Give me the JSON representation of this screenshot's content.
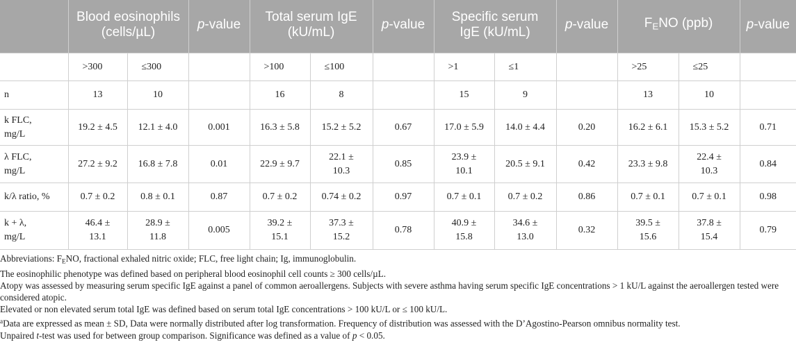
{
  "table": {
    "headers": {
      "blank": "",
      "blood_eos": [
        "Blood eosinophils",
        "(cells/µL)"
      ],
      "pvalue": "p",
      "pvalue_rest": "-value",
      "total_ige": [
        "Total serum IgE",
        "(kU/mL)"
      ],
      "specific_ige": [
        "Specific serum",
        "IgE (kU/mL)"
      ],
      "feno_f": "F",
      "feno_e": "E",
      "feno_rest": "NO (ppb)"
    },
    "cutoffs": [
      ">300",
      "≤300",
      "",
      ">100",
      "≤100",
      "",
      ">1",
      "≤1",
      "",
      ">25",
      "≤25",
      ""
    ],
    "rows": {
      "n": {
        "label": "n",
        "cells": [
          "13",
          "10",
          "",
          "16",
          "8",
          "",
          "15",
          "9",
          "",
          "13",
          "10",
          ""
        ]
      },
      "kflc": {
        "label": [
          "k FLC,",
          "mg/L"
        ],
        "cells": [
          [
            "19.2 ± 4.5"
          ],
          [
            "12.1 ± 4.0"
          ],
          [
            "0.001"
          ],
          [
            "16.3 ± 5.8"
          ],
          [
            "15.2 ± 5.2"
          ],
          [
            "0.67"
          ],
          [
            "17.0 ± 5.9"
          ],
          [
            "14.0 ± 4.4"
          ],
          [
            "0.20"
          ],
          [
            "16.2 ± 6.1"
          ],
          [
            "15.3 ± 5.2"
          ],
          [
            "0.71"
          ]
        ]
      },
      "lflc": {
        "label": [
          "λ FLC,",
          "mg/L"
        ],
        "cells": [
          [
            "27.2 ± 9.2"
          ],
          [
            "16.8 ± 7.8"
          ],
          [
            "0.01"
          ],
          [
            "22.9 ± 9.7"
          ],
          [
            "22.1 ±",
            "10.3"
          ],
          [
            "0.85"
          ],
          [
            "23.9 ±",
            "10.1"
          ],
          [
            "20.5 ± 9.1"
          ],
          [
            "0.42"
          ],
          [
            "23.3 ± 9.8"
          ],
          [
            "22.4 ±",
            "10.3"
          ],
          [
            "0.84"
          ]
        ]
      },
      "ratio": {
        "label": [
          "k/λ ratio, %"
        ],
        "cells": [
          [
            "0.7 ± 0.2"
          ],
          [
            "0.8 ± 0.1"
          ],
          [
            "0.87"
          ],
          [
            "0.7 ± 0.2"
          ],
          [
            "0.74 ± 0.2"
          ],
          [
            "0.97"
          ],
          [
            "0.7 ± 0.1"
          ],
          [
            "0.7 ± 0.2"
          ],
          [
            "0.86"
          ],
          [
            "0.7 ± 0.1"
          ],
          [
            "0.7 ± 0.1"
          ],
          [
            "0.98"
          ]
        ]
      },
      "sum": {
        "label": [
          "k + λ,",
          "mg/L"
        ],
        "cells": [
          [
            "46.4 ±",
            "13.1"
          ],
          [
            "28.9 ±",
            "11.8"
          ],
          [
            "0.005"
          ],
          [
            "39.2 ±",
            "15.1"
          ],
          [
            "37.3 ±",
            "15.2"
          ],
          [
            "0.78"
          ],
          [
            "40.9 ±",
            "15.8"
          ],
          [
            "34.6 ±",
            "13.0"
          ],
          [
            "0.32"
          ],
          [
            "39.5 ±",
            "15.6"
          ],
          [
            "37.8 ±",
            "15.4"
          ],
          [
            "0.79"
          ]
        ]
      }
    }
  },
  "notes": {
    "abbrev_pre": "Abbreviations: F",
    "abbrev_sub": "E",
    "abbrev_post": "NO, fractional exhaled nitric oxide; FLC, free light chain; Ig, immunoglobulin.",
    "eos": "The eosinophilic phenotype was defined based on peripheral blood eosinophil cell counts ≥ 300 cells/µL.",
    "atopy": "Atopy was assessed by measuring serum specific IgE against a panel of common aeroallergens. Subjects with severe asthma having serum specific IgE concentrations > 1 kU/L against the aeroallergen tested were considered atopic.",
    "elevated": "Elevated or non elevated serum total IgE was defined based on serum total IgE concentrations > 100 kU/L or ≤ 100 kU/L.",
    "data_sup": "a",
    "data": "Data are expressed as mean ± SD, Data were normally distributed after log transformation. Frequency of distribution was assessed with the D’Agostino-Pearson omnibus normality test.",
    "ttest_pre": "Unpaired ",
    "ttest_t": "t",
    "ttest_mid": "-test was used for between group comparison. Significance was defined as a value of ",
    "ttest_p": "p",
    "ttest_post": " < 0.05."
  }
}
